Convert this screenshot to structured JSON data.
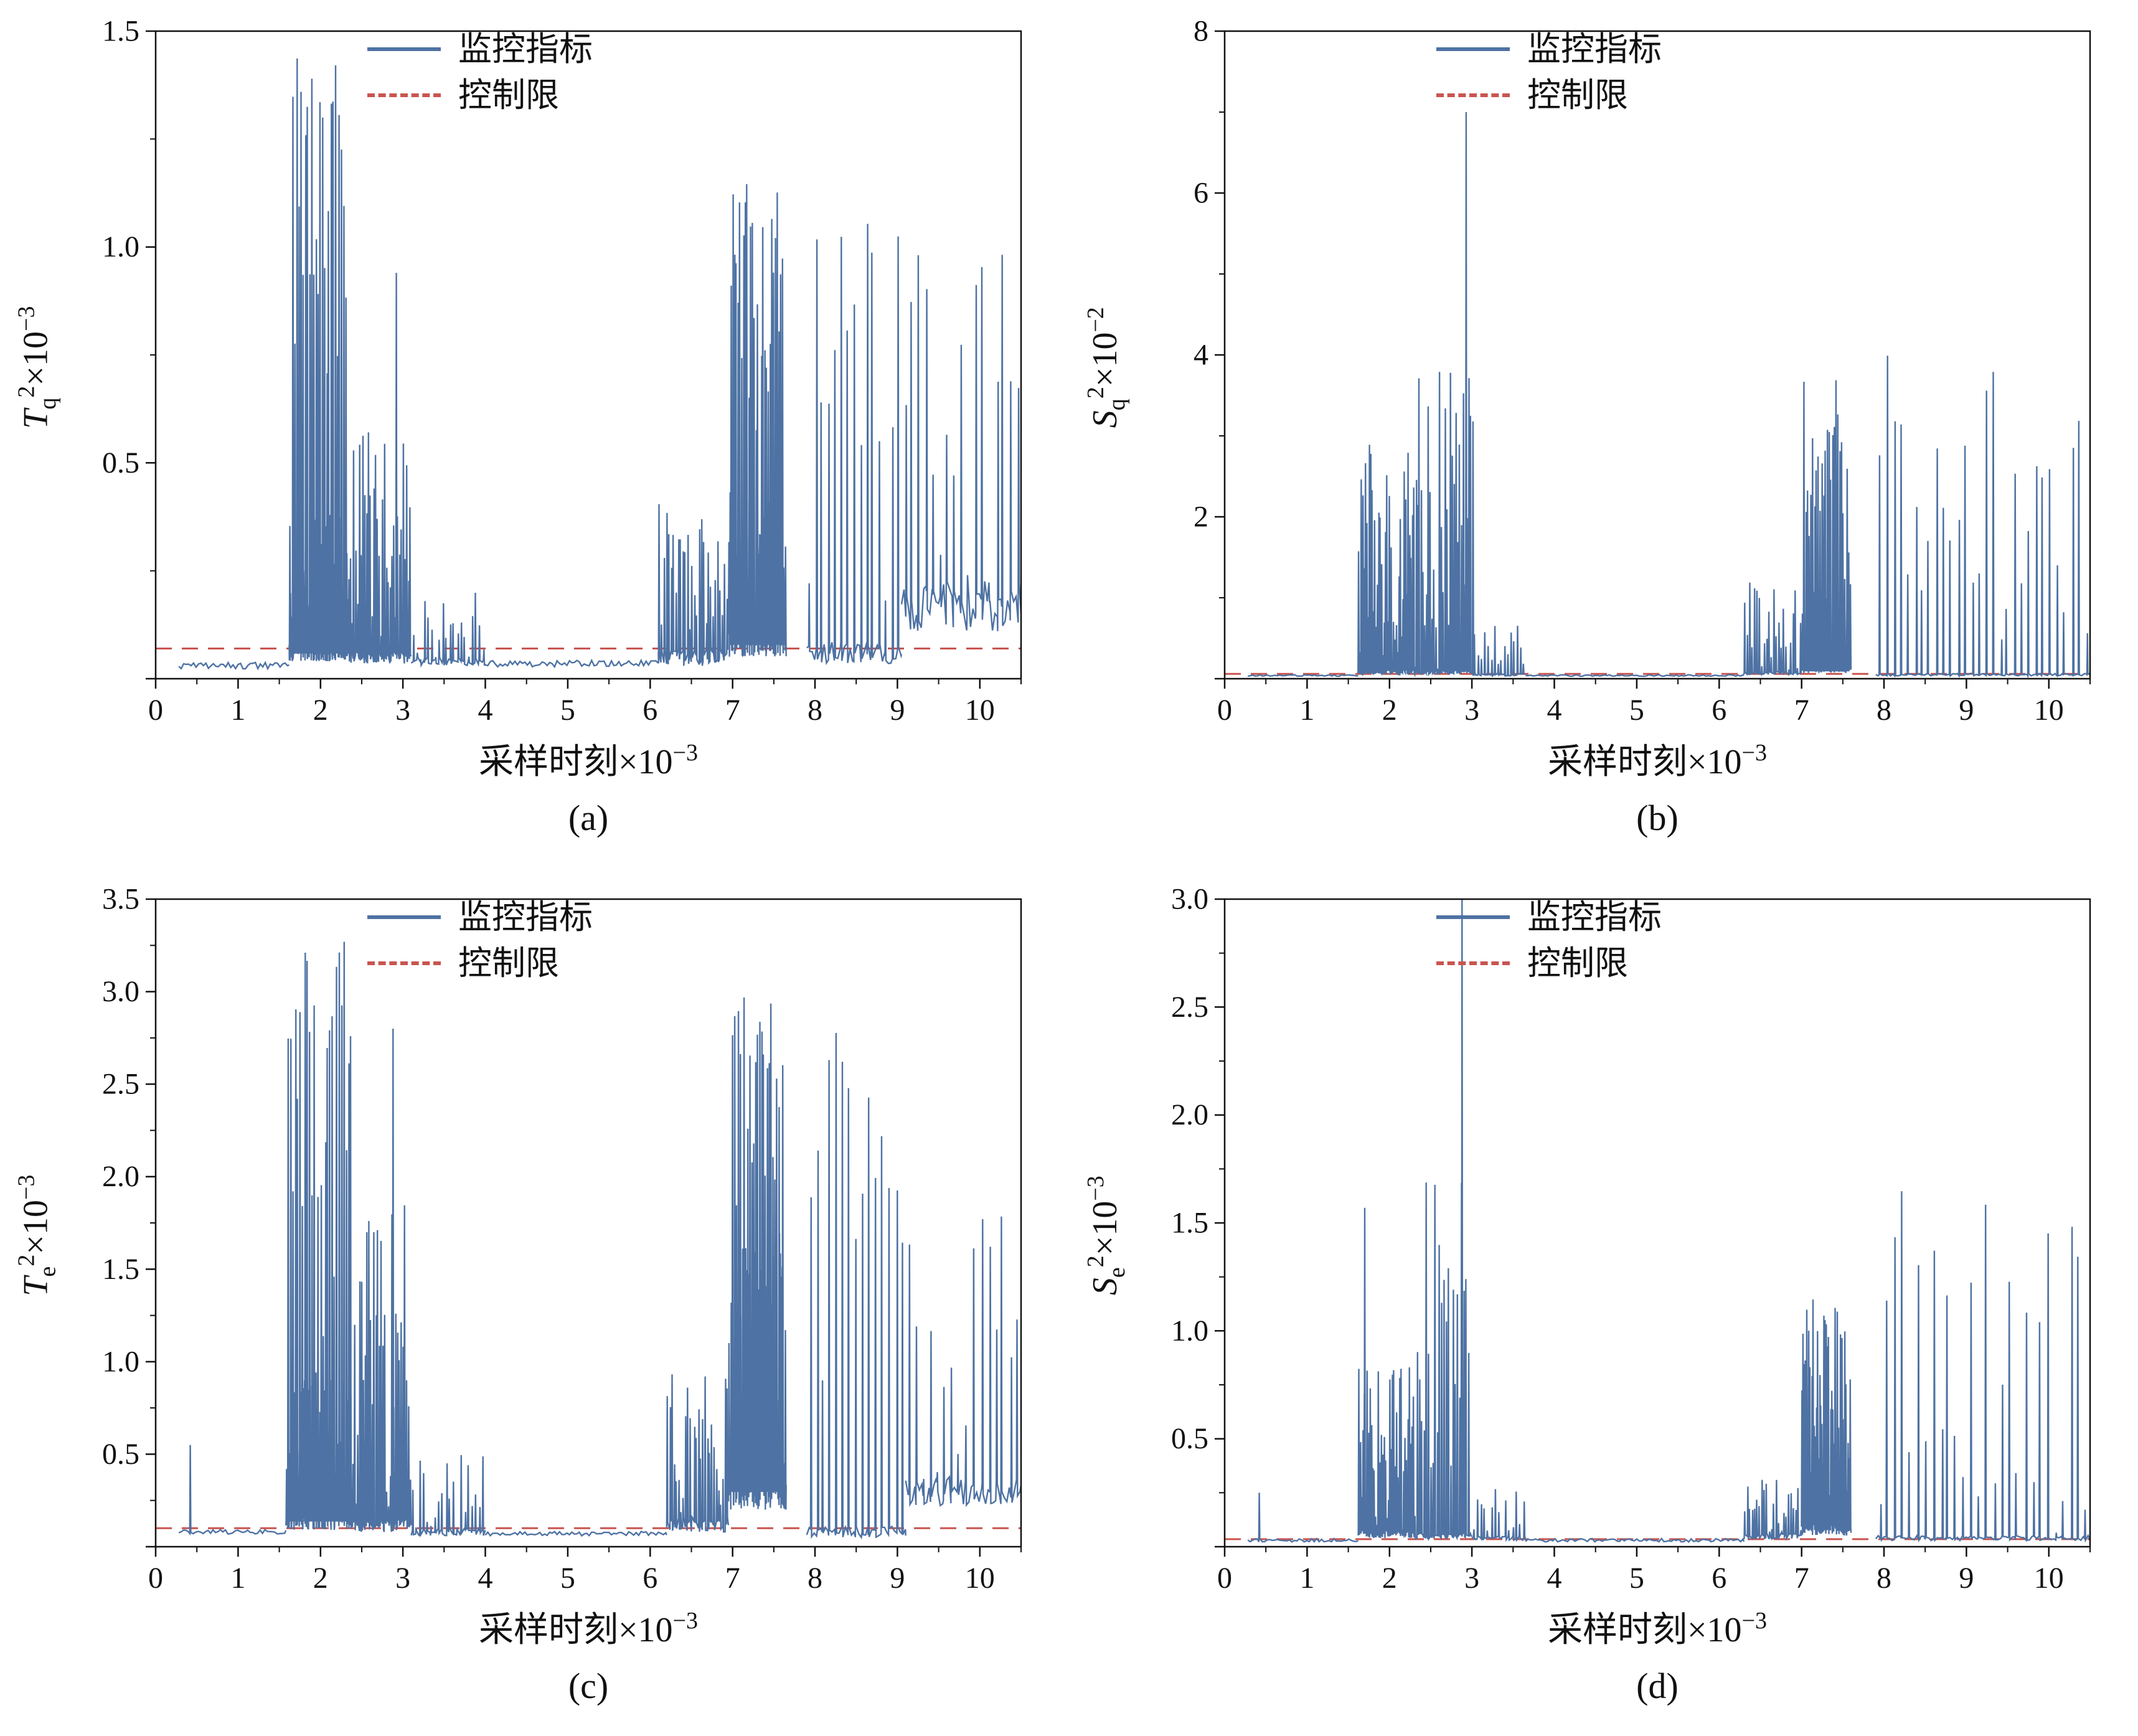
{
  "figure": {
    "background": "#ffffff"
  },
  "chart_data": [
    {
      "id": "a",
      "type": "line",
      "caption": "(a)",
      "ylabel": {
        "base": "T",
        "sub": "q",
        "sup": "2",
        "factor": "×10",
        "exp": "−3"
      },
      "xlabel": {
        "text": "采样时刻",
        "factor": "×10",
        "exp": "−3"
      },
      "xlim": [
        0,
        10.5
      ],
      "ylim": [
        0,
        1.5
      ],
      "xtick_values": [
        0,
        1,
        2,
        3,
        4,
        5,
        6,
        7,
        8,
        9,
        10
      ],
      "xtick_labels": [
        "0",
        "1",
        "2",
        "3",
        "4",
        "5",
        "6",
        "7",
        "8",
        "9",
        "10"
      ],
      "ytick_values": [
        0.5,
        1.0,
        1.5
      ],
      "ytick_labels": [
        "0.5",
        "1.0",
        "1.5"
      ],
      "control_limit": 0.07,
      "series_color": "#4e72a3",
      "limit_color": "#c9544f",
      "legend": [
        {
          "label": "监控指标",
          "style": "solid"
        },
        {
          "label": "控制限",
          "style": "dashed"
        }
      ],
      "segments": [
        {
          "x0": 0.28,
          "x1": 1.62,
          "base": 0.03,
          "amp": 0.008,
          "n": 0,
          "seed": 11
        },
        {
          "x0": 1.62,
          "x1": 2.35,
          "base": 0.06,
          "amp": 0.02,
          "n": 60,
          "peak": 0.38,
          "k": 0.8,
          "seed": 12
        },
        {
          "x0": 1.65,
          "x1": 2.32,
          "base": 0.06,
          "amp": 0,
          "n": 26,
          "peak": 1.45,
          "k": 0.35,
          "seed": 13
        },
        {
          "x0": 2.35,
          "x1": 3.1,
          "base": 0.05,
          "amp": 0.015,
          "n": 34,
          "peak": 0.6,
          "k": 0.9,
          "seed": 14,
          "extras": [
            {
              "x": 2.92,
              "h": 0.94
            }
          ]
        },
        {
          "x0": 3.1,
          "x1": 4.0,
          "base": 0.04,
          "amp": 0.01,
          "n": 20,
          "peak": 0.2,
          "k": 1.1,
          "seed": 15
        },
        {
          "x0": 4.0,
          "x1": 6.1,
          "base": 0.035,
          "amp": 0.008,
          "n": 0,
          "seed": 16
        },
        {
          "x0": 6.1,
          "x1": 6.95,
          "base": 0.05,
          "amp": 0.02,
          "n": 30,
          "peak": 0.42,
          "k": 0.9,
          "seed": 17
        },
        {
          "x0": 6.95,
          "x1": 7.65,
          "base": 0.08,
          "amp": 0.03,
          "n": 55,
          "peak": 0.45,
          "k": 0.8,
          "seed": 18
        },
        {
          "x0": 6.97,
          "x1": 7.62,
          "base": 0.08,
          "amp": 0,
          "n": 30,
          "peak": 1.15,
          "k": 0.3,
          "seed": 19
        },
        {
          "x0": 7.9,
          "x1": 9.05,
          "base": 0.06,
          "amp": 0.025,
          "n": 15,
          "peak": 1.12,
          "k": 0.55,
          "seed": 20
        },
        {
          "x0": 9.05,
          "x1": 10.5,
          "base": 0.17,
          "amp": 0.06,
          "n": 17,
          "peak": 1.0,
          "k": 1.0,
          "seed": 21
        }
      ]
    },
    {
      "id": "b",
      "type": "line",
      "caption": "(b)",
      "ylabel": {
        "base": "S",
        "sub": "q",
        "sup": "2",
        "factor": "×10",
        "exp": "−2"
      },
      "xlabel": {
        "text": "采样时刻",
        "factor": "×10",
        "exp": "−3"
      },
      "xlim": [
        0,
        10.5
      ],
      "ylim": [
        0,
        8
      ],
      "xtick_values": [
        0,
        1,
        2,
        3,
        4,
        5,
        6,
        7,
        8,
        9,
        10
      ],
      "xtick_labels": [
        "0",
        "1",
        "2",
        "3",
        "4",
        "5",
        "6",
        "7",
        "8",
        "9",
        "10"
      ],
      "ytick_values": [
        2,
        4,
        6,
        8
      ],
      "ytick_labels": [
        "2",
        "4",
        "6",
        "8"
      ],
      "control_limit": 0.06,
      "series_color": "#4e72a3",
      "limit_color": "#c9544f",
      "legend": [
        {
          "label": "监控指标",
          "style": "solid"
        },
        {
          "label": "控制限",
          "style": "dashed"
        }
      ],
      "segments": [
        {
          "x0": 0.28,
          "x1": 1.62,
          "base": 0.04,
          "amp": 0.01,
          "n": 0,
          "seed": 31
        },
        {
          "x0": 1.62,
          "x1": 2.35,
          "base": 0.08,
          "amp": 0.03,
          "n": 45,
          "peak": 2.9,
          "k": 0.8,
          "seed": 32
        },
        {
          "x0": 2.35,
          "x1": 3.02,
          "base": 0.08,
          "amp": 0.03,
          "n": 30,
          "peak": 3.9,
          "k": 0.75,
          "seed": 33,
          "extras": [
            {
              "x": 2.93,
              "h": 7.0
            }
          ]
        },
        {
          "x0": 3.02,
          "x1": 3.65,
          "base": 0.05,
          "amp": 0.015,
          "n": 16,
          "peak": 0.7,
          "k": 1.0,
          "seed": 34
        },
        {
          "x0": 3.65,
          "x1": 6.3,
          "base": 0.04,
          "amp": 0.01,
          "n": 0,
          "seed": 35
        },
        {
          "x0": 6.3,
          "x1": 7.0,
          "base": 0.07,
          "amp": 0.02,
          "n": 24,
          "peak": 1.25,
          "k": 0.9,
          "seed": 36
        },
        {
          "x0": 7.0,
          "x1": 7.6,
          "base": 0.12,
          "amp": 0.05,
          "n": 45,
          "peak": 1.2,
          "k": 0.8,
          "seed": 37
        },
        {
          "x0": 7.02,
          "x1": 7.58,
          "base": 0.1,
          "amp": 0,
          "n": 26,
          "peak": 3.7,
          "k": 0.35,
          "seed": 38
        },
        {
          "x0": 7.9,
          "x1": 10.5,
          "base": 0.05,
          "amp": 0.015,
          "n": 30,
          "peak": 4.2,
          "k": 0.85,
          "seed": 39
        }
      ]
    },
    {
      "id": "c",
      "type": "line",
      "caption": "(c)",
      "ylabel": {
        "base": "T",
        "sub": "e",
        "sup": "2",
        "factor": "×10",
        "exp": "−3"
      },
      "xlabel": {
        "text": "采样时刻",
        "factor": "×10",
        "exp": "−3"
      },
      "xlim": [
        0,
        10.5
      ],
      "ylim": [
        0,
        3.5
      ],
      "xtick_values": [
        0,
        1,
        2,
        3,
        4,
        5,
        6,
        7,
        8,
        9,
        10
      ],
      "xtick_labels": [
        "0",
        "1",
        "2",
        "3",
        "4",
        "5",
        "6",
        "7",
        "8",
        "9",
        "10"
      ],
      "ytick_values": [
        0.5,
        1.0,
        1.5,
        2.0,
        2.5,
        3.0,
        3.5
      ],
      "ytick_labels": [
        "0.5",
        "1.0",
        "1.5",
        "2.0",
        "2.5",
        "3.0",
        "3.5"
      ],
      "control_limit": 0.1,
      "series_color": "#4e72a3",
      "limit_color": "#c9544f",
      "legend": [
        {
          "label": "监控指标",
          "style": "solid"
        },
        {
          "label": "控制限",
          "style": "dashed"
        }
      ],
      "segments": [
        {
          "x0": 0.28,
          "x1": 1.58,
          "base": 0.08,
          "amp": 0.012,
          "n": 0,
          "seed": 41,
          "extras": [
            {
              "x": 0.42,
              "h": 0.55
            }
          ]
        },
        {
          "x0": 1.58,
          "x1": 2.4,
          "base": 0.14,
          "amp": 0.05,
          "n": 60,
          "peak": 0.9,
          "k": 0.8,
          "seed": 42
        },
        {
          "x0": 1.6,
          "x1": 2.38,
          "base": 0.14,
          "amp": 0,
          "n": 28,
          "peak": 3.3,
          "k": 0.4,
          "seed": 43
        },
        {
          "x0": 2.4,
          "x1": 3.1,
          "base": 0.12,
          "amp": 0.04,
          "n": 32,
          "peak": 1.85,
          "k": 0.8,
          "seed": 44,
          "extras": [
            {
              "x": 2.88,
              "h": 2.8
            }
          ]
        },
        {
          "x0": 3.1,
          "x1": 4.0,
          "base": 0.08,
          "amp": 0.02,
          "n": 20,
          "peak": 0.5,
          "k": 1.1,
          "seed": 45
        },
        {
          "x0": 4.0,
          "x1": 6.2,
          "base": 0.07,
          "amp": 0.012,
          "n": 0,
          "seed": 46
        },
        {
          "x0": 6.2,
          "x1": 6.95,
          "base": 0.12,
          "amp": 0.04,
          "n": 28,
          "peak": 0.95,
          "k": 0.85,
          "seed": 47
        },
        {
          "x0": 6.95,
          "x1": 7.65,
          "base": 0.3,
          "amp": 0.1,
          "n": 55,
          "peak": 1.7,
          "k": 0.7,
          "seed": 48
        },
        {
          "x0": 6.97,
          "x1": 7.62,
          "base": 0.3,
          "amp": 0,
          "n": 28,
          "peak": 3.0,
          "k": 0.3,
          "seed": 49
        },
        {
          "x0": 7.9,
          "x1": 9.1,
          "base": 0.08,
          "amp": 0.03,
          "n": 15,
          "peak": 2.85,
          "k": 0.5,
          "seed": 50
        },
        {
          "x0": 9.1,
          "x1": 10.5,
          "base": 0.3,
          "amp": 0.08,
          "n": 16,
          "peak": 1.85,
          "k": 1.0,
          "seed": 51
        }
      ]
    },
    {
      "id": "d",
      "type": "line",
      "caption": "(d)",
      "ylabel": {
        "base": "S",
        "sub": "e",
        "sup": "2",
        "factor": "×10",
        "exp": "−3"
      },
      "xlabel": {
        "text": "采样时刻",
        "factor": "×10",
        "exp": "−3"
      },
      "xlim": [
        0,
        10.5
      ],
      "ylim": [
        0,
        3.0
      ],
      "xtick_values": [
        0,
        1,
        2,
        3,
        4,
        5,
        6,
        7,
        8,
        9,
        10
      ],
      "xtick_labels": [
        "0",
        "1",
        "2",
        "3",
        "4",
        "5",
        "6",
        "7",
        "8",
        "9",
        "10"
      ],
      "ytick_values": [
        0.5,
        1.0,
        1.5,
        2.0,
        2.5,
        3.0
      ],
      "ytick_labels": [
        "0.5",
        "1.0",
        "1.5",
        "2.0",
        "2.5",
        "3.0"
      ],
      "control_limit": 0.035,
      "series_color": "#4e72a3",
      "limit_color": "#c9544f",
      "legend": [
        {
          "label": "监控指标",
          "style": "solid"
        },
        {
          "label": "控制限",
          "style": "dashed"
        }
      ],
      "segments": [
        {
          "x0": 0.28,
          "x1": 1.62,
          "base": 0.03,
          "amp": 0.008,
          "n": 0,
          "seed": 61,
          "extras": [
            {
              "x": 0.42,
              "h": 0.25
            }
          ]
        },
        {
          "x0": 1.62,
          "x1": 2.3,
          "base": 0.06,
          "amp": 0.02,
          "n": 40,
          "peak": 0.85,
          "k": 0.8,
          "seed": 62,
          "extras": [
            {
              "x": 1.7,
              "h": 1.57
            }
          ]
        },
        {
          "x0": 2.3,
          "x1": 3.0,
          "base": 0.05,
          "amp": 0.015,
          "n": 26,
          "peak": 1.7,
          "k": 0.85,
          "seed": 63,
          "extras": [
            {
              "x": 2.88,
              "h": 3.0
            }
          ]
        },
        {
          "x0": 3.0,
          "x1": 3.65,
          "base": 0.04,
          "amp": 0.01,
          "n": 15,
          "peak": 0.3,
          "k": 1.0,
          "seed": 64
        },
        {
          "x0": 3.65,
          "x1": 6.3,
          "base": 0.03,
          "amp": 0.008,
          "n": 0,
          "seed": 65
        },
        {
          "x0": 6.3,
          "x1": 7.0,
          "base": 0.05,
          "amp": 0.015,
          "n": 24,
          "peak": 0.32,
          "k": 1.0,
          "seed": 66
        },
        {
          "x0": 7.0,
          "x1": 7.6,
          "base": 0.08,
          "amp": 0.03,
          "n": 45,
          "peak": 1.15,
          "k": 0.6,
          "seed": 67
        },
        {
          "x0": 7.9,
          "x1": 10.5,
          "base": 0.04,
          "amp": 0.012,
          "n": 28,
          "peak": 1.7,
          "k": 0.9,
          "seed": 68
        }
      ]
    }
  ]
}
